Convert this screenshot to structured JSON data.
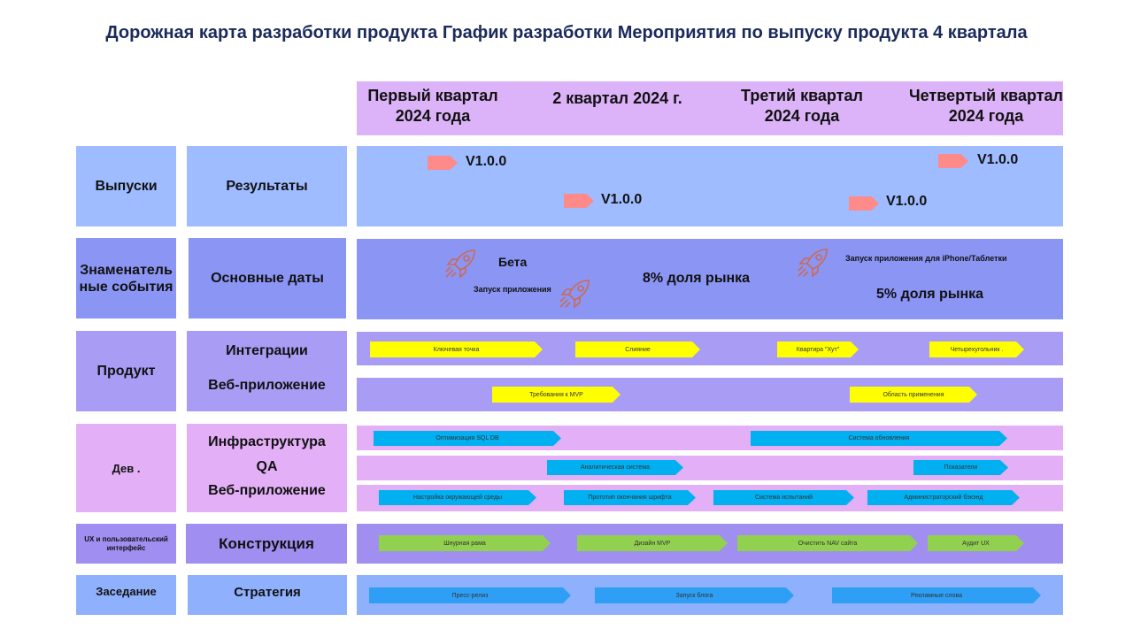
{
  "title": "Дорожная карта разработки продукта График разработки Мероприятия по выпуску продукта 4 квартала",
  "colors": {
    "header": "#dcb3f8",
    "releases_light": "#9ebcff",
    "milestones": "#8b95f4",
    "product_lane": "#a89cf5",
    "dev_lane": "#e3b0f7",
    "ux_lane": "#a08ef0",
    "meeting_lane": "#8fb0fc",
    "flag": "#ff8a8a",
    "yellow_bar": "#ffff00",
    "cyan_bar": "#00b0f0",
    "green_bar": "#92d050",
    "blue_bar": "#2e9ff5",
    "rocket": "#cc6a55"
  },
  "quarters": [
    "Первый квартал 2024 года",
    "2 квартал 2024 г.",
    "Третий квартал 2024 года",
    "Четвертый квартал 2024 года"
  ],
  "rows": {
    "releases": {
      "category": "Выпуски",
      "label": "Результаты"
    },
    "milestones": {
      "category": "Знаменательные события",
      "label": "Основные даты"
    },
    "product": {
      "category": "Продукт",
      "label1": "Интеграции",
      "label2": "Веб-приложение"
    },
    "dev": {
      "category": "Дев .",
      "label1": "Инфраструктура",
      "label2": "QA",
      "label3": "Веб-приложение"
    },
    "ux": {
      "category": "UX и пользовательский интерфейс",
      "label": "Конструкция"
    },
    "meeting": {
      "category": "Заседание",
      "label": "Стратегия"
    }
  },
  "releases": [
    "V1.0.0",
    "V1.0.0",
    "V1.0.0",
    "V1.0.0"
  ],
  "milestones": {
    "beta": "Бета",
    "app_launch": "Запуск приложения",
    "share8": "8% доля рынка",
    "iphone_launch": "Запуск приложения для iPhone/Таблетки",
    "share5": "5% доля рынка",
    "rocket_icon": "rocket-icon"
  },
  "product_bars": {
    "row1": [
      "Ключевая точка",
      "Слияние",
      "Квартира \"Хут\"",
      "Четырехугольник ."
    ],
    "row2": [
      "Требования к MVP",
      "Область применения"
    ]
  },
  "dev_bars": {
    "row1": [
      "Оптимизация SQL DB",
      "Система обновления"
    ],
    "row2": [
      "Аналитическая система",
      "Показатели"
    ],
    "row3": [
      "Настройка окружающей среды",
      "Прототип окончания шрифта",
      "Система испытаний",
      "Администраторский бэкэнд"
    ]
  },
  "ux_bars": [
    "Шнурная рама",
    "Дизайн MVP",
    "Очистить NAV сайта",
    "Аудит UX"
  ],
  "meeting_bars": [
    "Пресс-релиз",
    "Запуск блога",
    "Рекламные слова"
  ]
}
